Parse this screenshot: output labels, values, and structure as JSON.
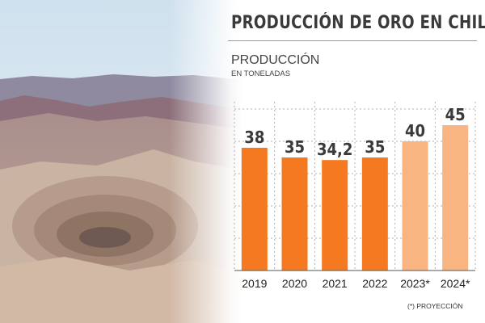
{
  "title": "PRODUCCIÓN DE ORO EN CHILE",
  "subtitle": "PRODUCCIÓN",
  "unit_label": "EN TONELADAS",
  "footnote": "(*) PROYECCIÓN",
  "colors": {
    "actual": "#f47920",
    "projection": "#f8b581",
    "value_label": "#3a3a3a",
    "grid": "#b0b0b0",
    "axis": "#555555"
  },
  "chart_data": {
    "type": "bar",
    "categories": [
      "2019",
      "2020",
      "2021",
      "2022",
      "2023*",
      "2024*"
    ],
    "values": [
      38,
      35,
      34.2,
      35,
      40,
      45
    ],
    "value_labels": [
      "38",
      "35",
      "34,2",
      "35",
      "40",
      "45"
    ],
    "projected": [
      false,
      false,
      false,
      false,
      true,
      true
    ],
    "title": "PRODUCCIÓN",
    "xlabel": "",
    "ylabel": "EN TONELADAS",
    "ylim": [
      0,
      50
    ],
    "grid": true,
    "legend": "none"
  }
}
